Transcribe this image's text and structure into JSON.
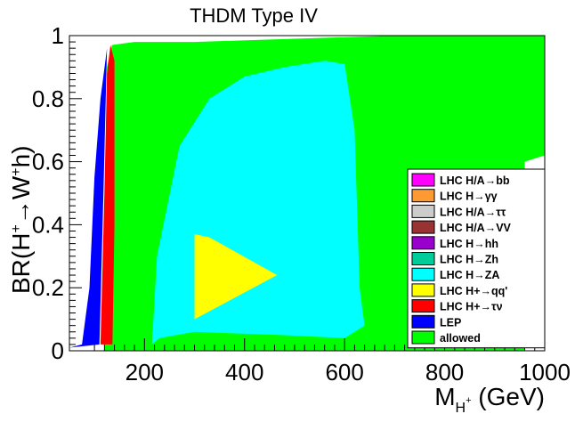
{
  "chart_data": {
    "type": "scatter",
    "title": "THDM Type IV",
    "xlabel": "M_{H^+} (GeV)",
    "xlabel_main": "M",
    "xlabel_sub": "H",
    "xlabel_sup": "+",
    "xlabel_unit": " (GeV)",
    "ylabel": "BR(H^+ → W^+ h)",
    "ylabel_pre": "BR(H",
    "ylabel_sup1": "+",
    "ylabel_arrow": "→W",
    "ylabel_sup2": "+",
    "ylabel_post": "h)",
    "xlim": [
      50,
      1000
    ],
    "ylim": [
      0,
      1
    ],
    "xticks": [
      200,
      400,
      600,
      800,
      1000
    ],
    "yticks": [
      0,
      0.2,
      0.4,
      0.6,
      0.8,
      1
    ],
    "ytick_labels": [
      "0",
      "0.2",
      "0.4",
      "0.6",
      "0.8",
      "1"
    ],
    "legend_position": "right",
    "series": [
      {
        "name": "LHC H/A→bb",
        "label": "LHC H/A→bb",
        "color": "#ff00ff"
      },
      {
        "name": "LHC H→γγ",
        "label": "LHC H→γγ",
        "color": "#ff9933"
      },
      {
        "name": "LHC H/A→ττ",
        "label": "LHC H/A→ττ",
        "color": "#cccccc"
      },
      {
        "name": "LHC H/A→VV",
        "label": "LHC H/A→VV",
        "color": "#993333"
      },
      {
        "name": "LHC H→hh",
        "label": "LHC H→hh",
        "color": "#9900cc"
      },
      {
        "name": "LHC H→Zh",
        "label": "LHC H→Zh",
        "color": "#00cc99"
      },
      {
        "name": "LHC H→ZA",
        "label": "LHC H→ZA",
        "color": "#00ffff",
        "region": [
          [
            215,
            0.02
          ],
          [
            225,
            0.3
          ],
          [
            270,
            0.65
          ],
          [
            330,
            0.8
          ],
          [
            400,
            0.87
          ],
          [
            480,
            0.9
          ],
          [
            560,
            0.92
          ],
          [
            600,
            0.91
          ],
          [
            620,
            0.7
          ],
          [
            630,
            0.2
          ],
          [
            640,
            0.08
          ],
          [
            600,
            0.04
          ],
          [
            470,
            0.05
          ],
          [
            300,
            0.06
          ],
          [
            230,
            0.04
          ]
        ]
      },
      {
        "name": "LHC H^+→qq'",
        "label": "LHC H+→qq'",
        "color": "#ffff00",
        "region": [
          [
            300,
            0.1
          ],
          [
            300,
            0.37
          ],
          [
            330,
            0.36
          ],
          [
            465,
            0.24
          ],
          [
            300,
            0.1
          ]
        ]
      },
      {
        "name": "LHC H^+→τν",
        "label": "LHC H+→τν",
        "color": "#ff0000",
        "region": [
          [
            112,
            0.02
          ],
          [
            120,
            0.5
          ],
          [
            125,
            0.88
          ],
          [
            132,
            0.97
          ],
          [
            140,
            0.92
          ],
          [
            140,
            0.4
          ],
          [
            136,
            0.02
          ]
        ]
      },
      {
        "name": "LEP",
        "label": "LEP",
        "color": "#0000ff",
        "region": [
          [
            50,
            0.01
          ],
          [
            75,
            0.02
          ],
          [
            90,
            0.2
          ],
          [
            100,
            0.55
          ],
          [
            112,
            0.8
          ],
          [
            125,
            0.96
          ],
          [
            118,
            0.5
          ],
          [
            110,
            0.02
          ]
        ]
      },
      {
        "name": "allowed",
        "label": "allowed",
        "color": "#00ff00",
        "region": [
          [
            120,
            0
          ],
          [
            125,
            0.9
          ],
          [
            135,
            0.97
          ],
          [
            180,
            0.98
          ],
          [
            300,
            0.98
          ],
          [
            500,
            0.99
          ],
          [
            700,
            1.0
          ],
          [
            1000,
            1.0
          ],
          [
            1000,
            0.62
          ],
          [
            960,
            0.6
          ],
          [
            960,
            0
          ],
          [
            120,
            0
          ]
        ]
      }
    ]
  }
}
